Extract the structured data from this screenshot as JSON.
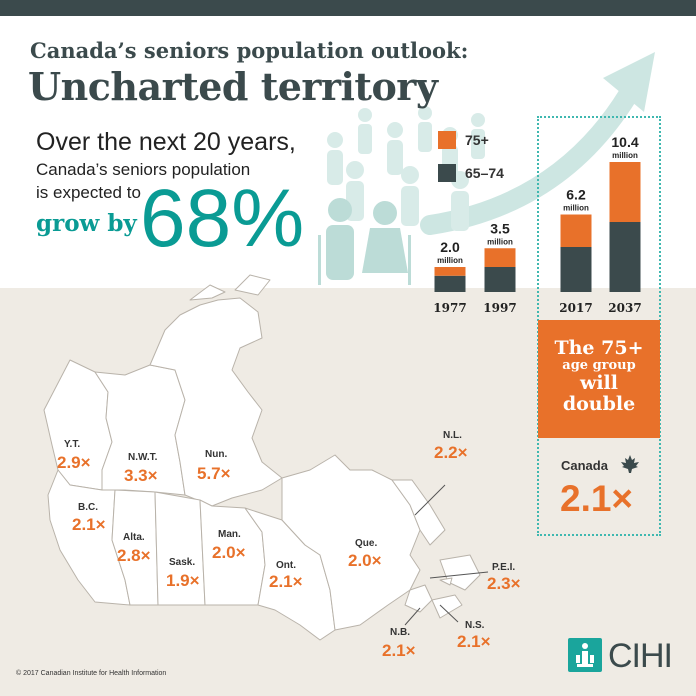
{
  "header": {
    "subtitle": "Canada’s seniors population outlook:",
    "title": "Uncharted territory"
  },
  "intro": {
    "line1": "Over the next 20 years,",
    "line2": "Canada’s seniors population",
    "line3": "is expected to",
    "line4": "grow by",
    "big_value": "68%"
  },
  "colors": {
    "dark": "#3b4a4c",
    "orange": "#e8712a",
    "teal": "#0a9b94",
    "beige": "#efebe4"
  },
  "chart_data": {
    "type": "bar",
    "stacked": true,
    "categories": [
      "1977",
      "1997",
      "2017",
      "2037"
    ],
    "series": [
      {
        "name": "65–74",
        "color": "#3b4a4c",
        "values": [
          1.3,
          2.0,
          3.6,
          5.6
        ]
      },
      {
        "name": "75+",
        "color": "#e8712a",
        "values": [
          0.7,
          1.5,
          2.6,
          4.8
        ]
      }
    ],
    "totals": [
      2.0,
      3.5,
      6.2,
      10.4
    ],
    "total_labels": [
      "2.0",
      "3.5",
      "6.2",
      "10.4"
    ],
    "unit_label": "million",
    "legend": [
      {
        "label": "75+",
        "color": "#e8712a"
      },
      {
        "label": "65–74",
        "color": "#3b4a4c"
      }
    ]
  },
  "callout": {
    "line1": "The 75+",
    "line2": "age group",
    "line3": "will",
    "line4": "double"
  },
  "canada": {
    "label": "Canada",
    "value": "2.1×",
    "icon": "maple-leaf-icon"
  },
  "provinces": [
    {
      "name": "Y.T.",
      "value": "2.9×"
    },
    {
      "name": "N.W.T.",
      "value": "3.3×"
    },
    {
      "name": "Nun.",
      "value": "5.7×"
    },
    {
      "name": "B.C.",
      "value": "2.1×"
    },
    {
      "name": "Alta.",
      "value": "2.8×"
    },
    {
      "name": "Sask.",
      "value": "1.9×"
    },
    {
      "name": "Man.",
      "value": "2.0×"
    },
    {
      "name": "Ont.",
      "value": "2.1×"
    },
    {
      "name": "Que.",
      "value": "2.0×"
    },
    {
      "name": "N.L.",
      "value": "2.2×"
    },
    {
      "name": "P.E.I.",
      "value": "2.3×"
    },
    {
      "name": "N.B.",
      "value": "2.1×"
    },
    {
      "name": "N.S.",
      "value": "2.1×"
    }
  ],
  "footer": {
    "copyright": "© 2017 Canadian Institute for Health Information",
    "logo_text": "CIHI"
  }
}
